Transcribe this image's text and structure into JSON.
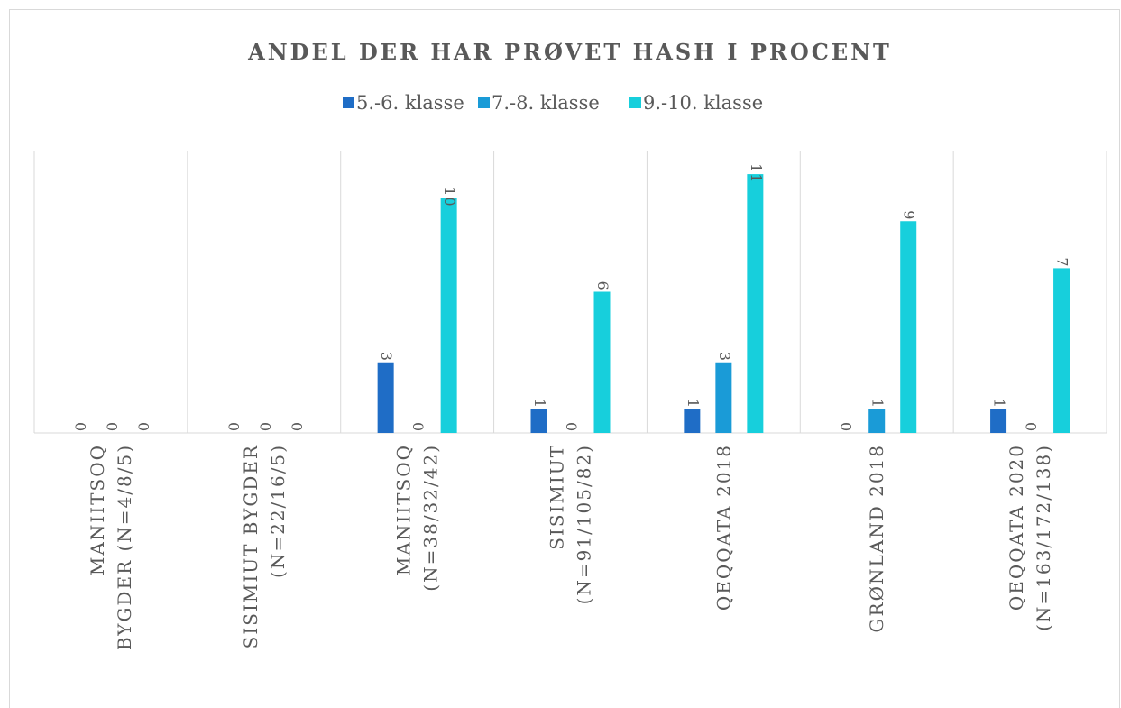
{
  "chart_data": {
    "type": "bar",
    "title": "ANDEL DER HAR PRØVET HASH I PROCENT",
    "categories": [
      "MANIITSOQ\nBYGDER (N=4/8/5)",
      "SISIMIUT BYGDER\n(N=22/16/5)",
      "MANIITSOQ\n(N=38/32/42)",
      "SISIMIUT\n(N=91/105/82)",
      "QEQQATA 2018",
      "GRØNLAND 2018",
      "QEQQATA 2020\n(N=163/172/138)"
    ],
    "series": [
      {
        "name": "5.-6. klasse",
        "color": "#1f6dc6",
        "values": [
          0,
          0,
          3,
          1,
          1,
          0,
          1
        ]
      },
      {
        "name": "7.-8. klasse",
        "color": "#1a9bd7",
        "values": [
          0,
          0,
          0,
          0,
          3,
          1,
          0
        ]
      },
      {
        "name": "9.-10. klasse",
        "color": "#17cfdc",
        "values": [
          0,
          0,
          10,
          6,
          11,
          9,
          7
        ]
      }
    ],
    "ylim": [
      0,
      12
    ],
    "grid": true,
    "legend": "top"
  }
}
